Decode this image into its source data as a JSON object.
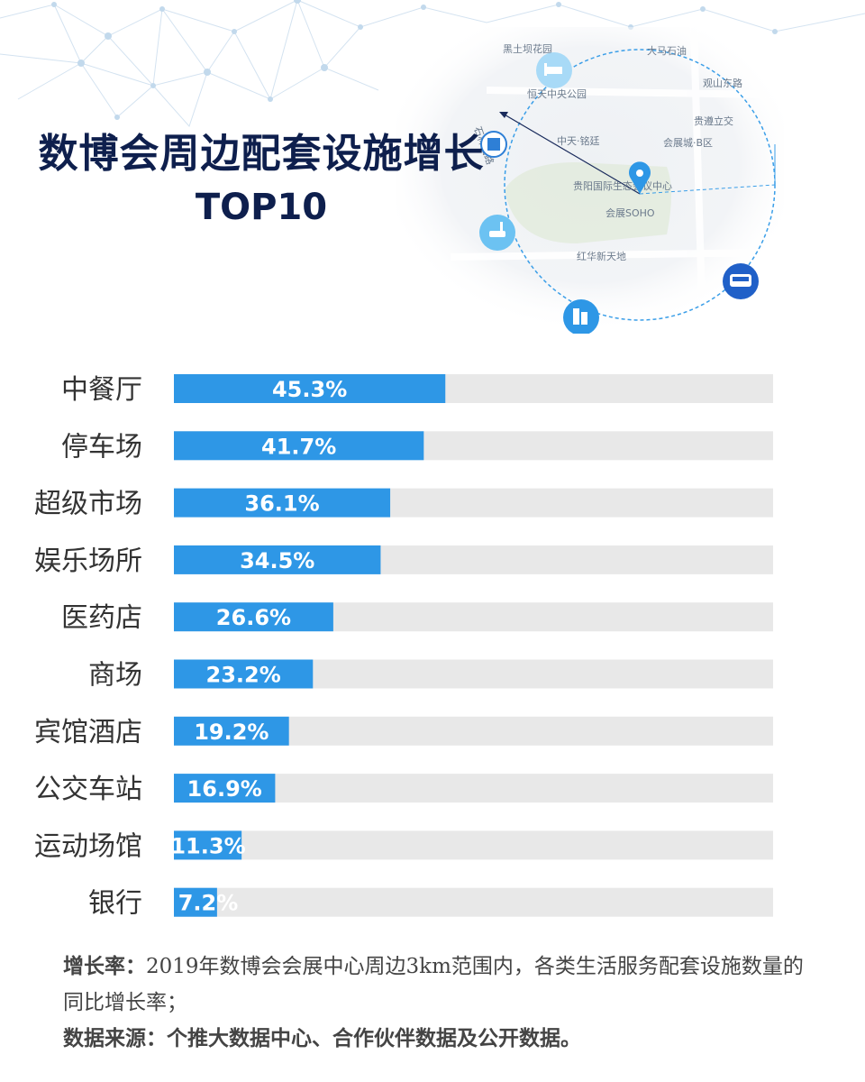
{
  "title": {
    "line1": "数博会周边配套设施增长",
    "line2": "TOP10"
  },
  "map_labels": [
    "黑土坝花园",
    "大马石油",
    "恒天中央公园",
    "中天·铭廷",
    "会展城·B区",
    "贵阳国际生态会议中心",
    "会展SOHO",
    "红华新天地",
    "贵遵立交",
    "石林西路",
    "观山东路"
  ],
  "map_icons": [
    "hotel-icon",
    "building-icon",
    "restaurant-icon",
    "apartment-icon",
    "bus-icon",
    "location-pin-icon"
  ],
  "colors": {
    "bar": "#2e97e6",
    "track": "#e8e8e8",
    "title": "#0e1f4d",
    "label": "#333333",
    "value": "#ffffff"
  },
  "chart_data": {
    "type": "bar",
    "orientation": "horizontal",
    "categories": [
      "中餐厅",
      "停车场",
      "超级市场",
      "娱乐场所",
      "医药店",
      "商场",
      "宾馆酒店",
      "公交车站",
      "运动场馆",
      "银行"
    ],
    "values": [
      45.3,
      41.7,
      36.1,
      34.5,
      26.6,
      23.2,
      19.2,
      16.9,
      11.3,
      7.2
    ],
    "value_labels": [
      "45.3%",
      "41.7%",
      "36.1%",
      "34.5%",
      "26.6%",
      "23.2%",
      "19.2%",
      "16.9%",
      "11.3%",
      "7.2%"
    ],
    "xlim": [
      0,
      100
    ],
    "grid": false,
    "legend": "none"
  },
  "notes": {
    "growth_label": "增长率：",
    "growth_text": "2019年数博会会展中心周边3km范围内，各类生活服务配套设施数量的同比增长率；",
    "source_label": "数据来源：",
    "source_text": "个推大数据中心、合作伙伴数据及公开数据。"
  }
}
